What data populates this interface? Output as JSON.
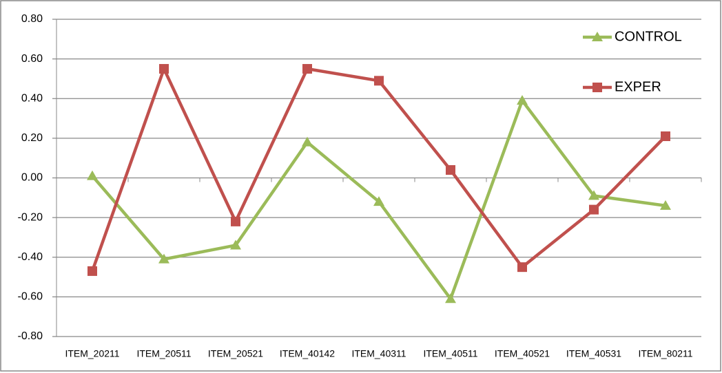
{
  "chart_data": {
    "type": "line",
    "categories": [
      "ITEM_20211",
      "ITEM_20511",
      "ITEM_20521",
      "ITEM_40142",
      "ITEM_40311",
      "ITEM_40511",
      "ITEM_40521",
      "ITEM_40531",
      "ITEM_80211"
    ],
    "series": [
      {
        "name": "CONTROL",
        "color": "#9bbb59",
        "marker": "triangle",
        "values": [
          0.01,
          -0.41,
          -0.34,
          0.18,
          -0.12,
          -0.61,
          0.39,
          -0.09,
          -0.14
        ]
      },
      {
        "name": "EXPER",
        "color": "#c0504d",
        "marker": "square",
        "values": [
          -0.47,
          0.55,
          -0.22,
          0.55,
          0.49,
          0.04,
          -0.45,
          -0.16,
          0.21
        ]
      }
    ],
    "ylim": [
      -0.8,
      0.8
    ],
    "yticks": [
      {
        "value": -0.8,
        "label": "-0.80"
      },
      {
        "value": -0.6,
        "label": "-0.60"
      },
      {
        "value": -0.4,
        "label": "-0.40"
      },
      {
        "value": -0.2,
        "label": "-0.20"
      },
      {
        "value": 0,
        "label": "0.00"
      },
      {
        "value": 0.2,
        "label": "0.20"
      },
      {
        "value": 0.4,
        "label": "0.40"
      },
      {
        "value": 0.6,
        "label": "0.60"
      },
      {
        "value": 0.8,
        "label": "0.80"
      }
    ],
    "grid": true,
    "legend": "top-right"
  }
}
